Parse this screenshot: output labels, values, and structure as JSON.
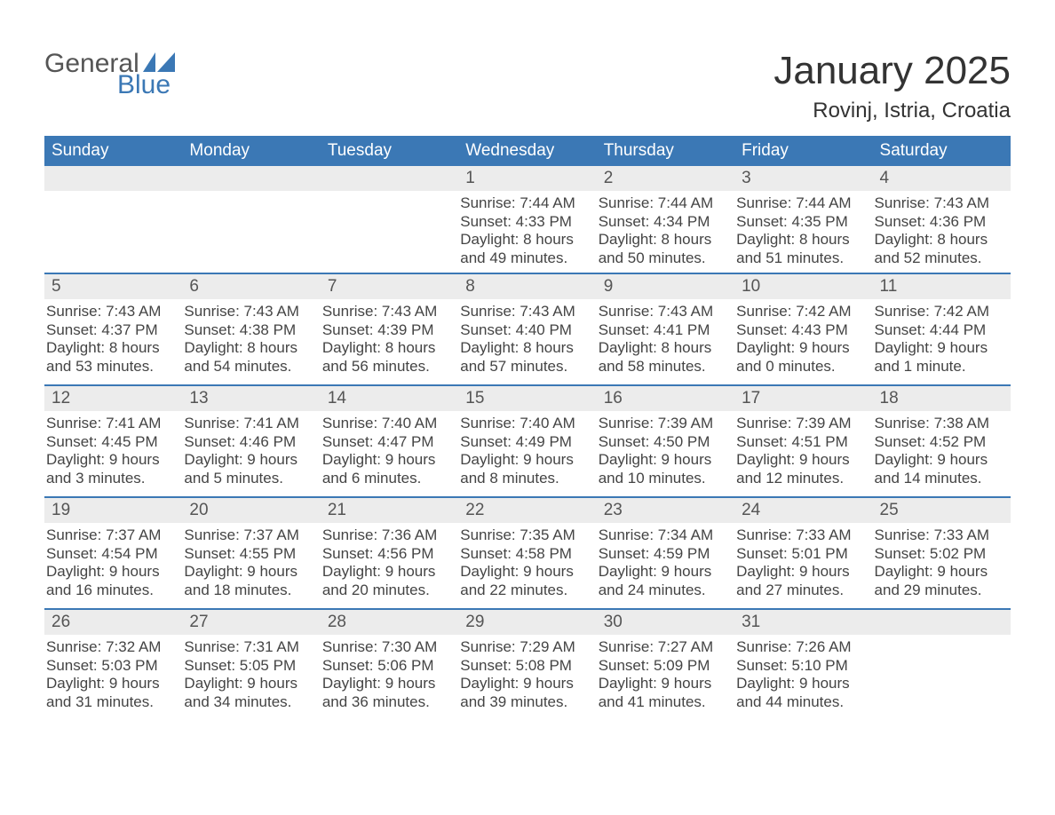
{
  "logo": {
    "general": "General",
    "blue": "Blue",
    "accent_color": "#3b78b5"
  },
  "title": "January 2025",
  "subtitle": "Rovinj, Istria, Croatia",
  "colors": {
    "header_bg": "#3b78b5",
    "header_text": "#ffffff",
    "daybar_bg": "#ececec",
    "daybar_border": "#3b78b5",
    "text": "#444444",
    "daynum_text": "#555555",
    "page_bg": "#ffffff"
  },
  "typography": {
    "title_fontsize": 44,
    "subtitle_fontsize": 24,
    "header_fontsize": 19,
    "daynum_fontsize": 19,
    "content_fontsize": 17
  },
  "calendar": {
    "weekdays": [
      "Sunday",
      "Monday",
      "Tuesday",
      "Wednesday",
      "Thursday",
      "Friday",
      "Saturday"
    ],
    "weeks": [
      [
        null,
        null,
        null,
        {
          "day": "1",
          "sunrise": "Sunrise: 7:44 AM",
          "sunset": "Sunset: 4:33 PM",
          "daylight1": "Daylight: 8 hours",
          "daylight2": "and 49 minutes."
        },
        {
          "day": "2",
          "sunrise": "Sunrise: 7:44 AM",
          "sunset": "Sunset: 4:34 PM",
          "daylight1": "Daylight: 8 hours",
          "daylight2": "and 50 minutes."
        },
        {
          "day": "3",
          "sunrise": "Sunrise: 7:44 AM",
          "sunset": "Sunset: 4:35 PM",
          "daylight1": "Daylight: 8 hours",
          "daylight2": "and 51 minutes."
        },
        {
          "day": "4",
          "sunrise": "Sunrise: 7:43 AM",
          "sunset": "Sunset: 4:36 PM",
          "daylight1": "Daylight: 8 hours",
          "daylight2": "and 52 minutes."
        }
      ],
      [
        {
          "day": "5",
          "sunrise": "Sunrise: 7:43 AM",
          "sunset": "Sunset: 4:37 PM",
          "daylight1": "Daylight: 8 hours",
          "daylight2": "and 53 minutes."
        },
        {
          "day": "6",
          "sunrise": "Sunrise: 7:43 AM",
          "sunset": "Sunset: 4:38 PM",
          "daylight1": "Daylight: 8 hours",
          "daylight2": "and 54 minutes."
        },
        {
          "day": "7",
          "sunrise": "Sunrise: 7:43 AM",
          "sunset": "Sunset: 4:39 PM",
          "daylight1": "Daylight: 8 hours",
          "daylight2": "and 56 minutes."
        },
        {
          "day": "8",
          "sunrise": "Sunrise: 7:43 AM",
          "sunset": "Sunset: 4:40 PM",
          "daylight1": "Daylight: 8 hours",
          "daylight2": "and 57 minutes."
        },
        {
          "day": "9",
          "sunrise": "Sunrise: 7:43 AM",
          "sunset": "Sunset: 4:41 PM",
          "daylight1": "Daylight: 8 hours",
          "daylight2": "and 58 minutes."
        },
        {
          "day": "10",
          "sunrise": "Sunrise: 7:42 AM",
          "sunset": "Sunset: 4:43 PM",
          "daylight1": "Daylight: 9 hours",
          "daylight2": "and 0 minutes."
        },
        {
          "day": "11",
          "sunrise": "Sunrise: 7:42 AM",
          "sunset": "Sunset: 4:44 PM",
          "daylight1": "Daylight: 9 hours",
          "daylight2": "and 1 minute."
        }
      ],
      [
        {
          "day": "12",
          "sunrise": "Sunrise: 7:41 AM",
          "sunset": "Sunset: 4:45 PM",
          "daylight1": "Daylight: 9 hours",
          "daylight2": "and 3 minutes."
        },
        {
          "day": "13",
          "sunrise": "Sunrise: 7:41 AM",
          "sunset": "Sunset: 4:46 PM",
          "daylight1": "Daylight: 9 hours",
          "daylight2": "and 5 minutes."
        },
        {
          "day": "14",
          "sunrise": "Sunrise: 7:40 AM",
          "sunset": "Sunset: 4:47 PM",
          "daylight1": "Daylight: 9 hours",
          "daylight2": "and 6 minutes."
        },
        {
          "day": "15",
          "sunrise": "Sunrise: 7:40 AM",
          "sunset": "Sunset: 4:49 PM",
          "daylight1": "Daylight: 9 hours",
          "daylight2": "and 8 minutes."
        },
        {
          "day": "16",
          "sunrise": "Sunrise: 7:39 AM",
          "sunset": "Sunset: 4:50 PM",
          "daylight1": "Daylight: 9 hours",
          "daylight2": "and 10 minutes."
        },
        {
          "day": "17",
          "sunrise": "Sunrise: 7:39 AM",
          "sunset": "Sunset: 4:51 PM",
          "daylight1": "Daylight: 9 hours",
          "daylight2": "and 12 minutes."
        },
        {
          "day": "18",
          "sunrise": "Sunrise: 7:38 AM",
          "sunset": "Sunset: 4:52 PM",
          "daylight1": "Daylight: 9 hours",
          "daylight2": "and 14 minutes."
        }
      ],
      [
        {
          "day": "19",
          "sunrise": "Sunrise: 7:37 AM",
          "sunset": "Sunset: 4:54 PM",
          "daylight1": "Daylight: 9 hours",
          "daylight2": "and 16 minutes."
        },
        {
          "day": "20",
          "sunrise": "Sunrise: 7:37 AM",
          "sunset": "Sunset: 4:55 PM",
          "daylight1": "Daylight: 9 hours",
          "daylight2": "and 18 minutes."
        },
        {
          "day": "21",
          "sunrise": "Sunrise: 7:36 AM",
          "sunset": "Sunset: 4:56 PM",
          "daylight1": "Daylight: 9 hours",
          "daylight2": "and 20 minutes."
        },
        {
          "day": "22",
          "sunrise": "Sunrise: 7:35 AM",
          "sunset": "Sunset: 4:58 PM",
          "daylight1": "Daylight: 9 hours",
          "daylight2": "and 22 minutes."
        },
        {
          "day": "23",
          "sunrise": "Sunrise: 7:34 AM",
          "sunset": "Sunset: 4:59 PM",
          "daylight1": "Daylight: 9 hours",
          "daylight2": "and 24 minutes."
        },
        {
          "day": "24",
          "sunrise": "Sunrise: 7:33 AM",
          "sunset": "Sunset: 5:01 PM",
          "daylight1": "Daylight: 9 hours",
          "daylight2": "and 27 minutes."
        },
        {
          "day": "25",
          "sunrise": "Sunrise: 7:33 AM",
          "sunset": "Sunset: 5:02 PM",
          "daylight1": "Daylight: 9 hours",
          "daylight2": "and 29 minutes."
        }
      ],
      [
        {
          "day": "26",
          "sunrise": "Sunrise: 7:32 AM",
          "sunset": "Sunset: 5:03 PM",
          "daylight1": "Daylight: 9 hours",
          "daylight2": "and 31 minutes."
        },
        {
          "day": "27",
          "sunrise": "Sunrise: 7:31 AM",
          "sunset": "Sunset: 5:05 PM",
          "daylight1": "Daylight: 9 hours",
          "daylight2": "and 34 minutes."
        },
        {
          "day": "28",
          "sunrise": "Sunrise: 7:30 AM",
          "sunset": "Sunset: 5:06 PM",
          "daylight1": "Daylight: 9 hours",
          "daylight2": "and 36 minutes."
        },
        {
          "day": "29",
          "sunrise": "Sunrise: 7:29 AM",
          "sunset": "Sunset: 5:08 PM",
          "daylight1": "Daylight: 9 hours",
          "daylight2": "and 39 minutes."
        },
        {
          "day": "30",
          "sunrise": "Sunrise: 7:27 AM",
          "sunset": "Sunset: 5:09 PM",
          "daylight1": "Daylight: 9 hours",
          "daylight2": "and 41 minutes."
        },
        {
          "day": "31",
          "sunrise": "Sunrise: 7:26 AM",
          "sunset": "Sunset: 5:10 PM",
          "daylight1": "Daylight: 9 hours",
          "daylight2": "and 44 minutes."
        },
        null
      ]
    ]
  }
}
